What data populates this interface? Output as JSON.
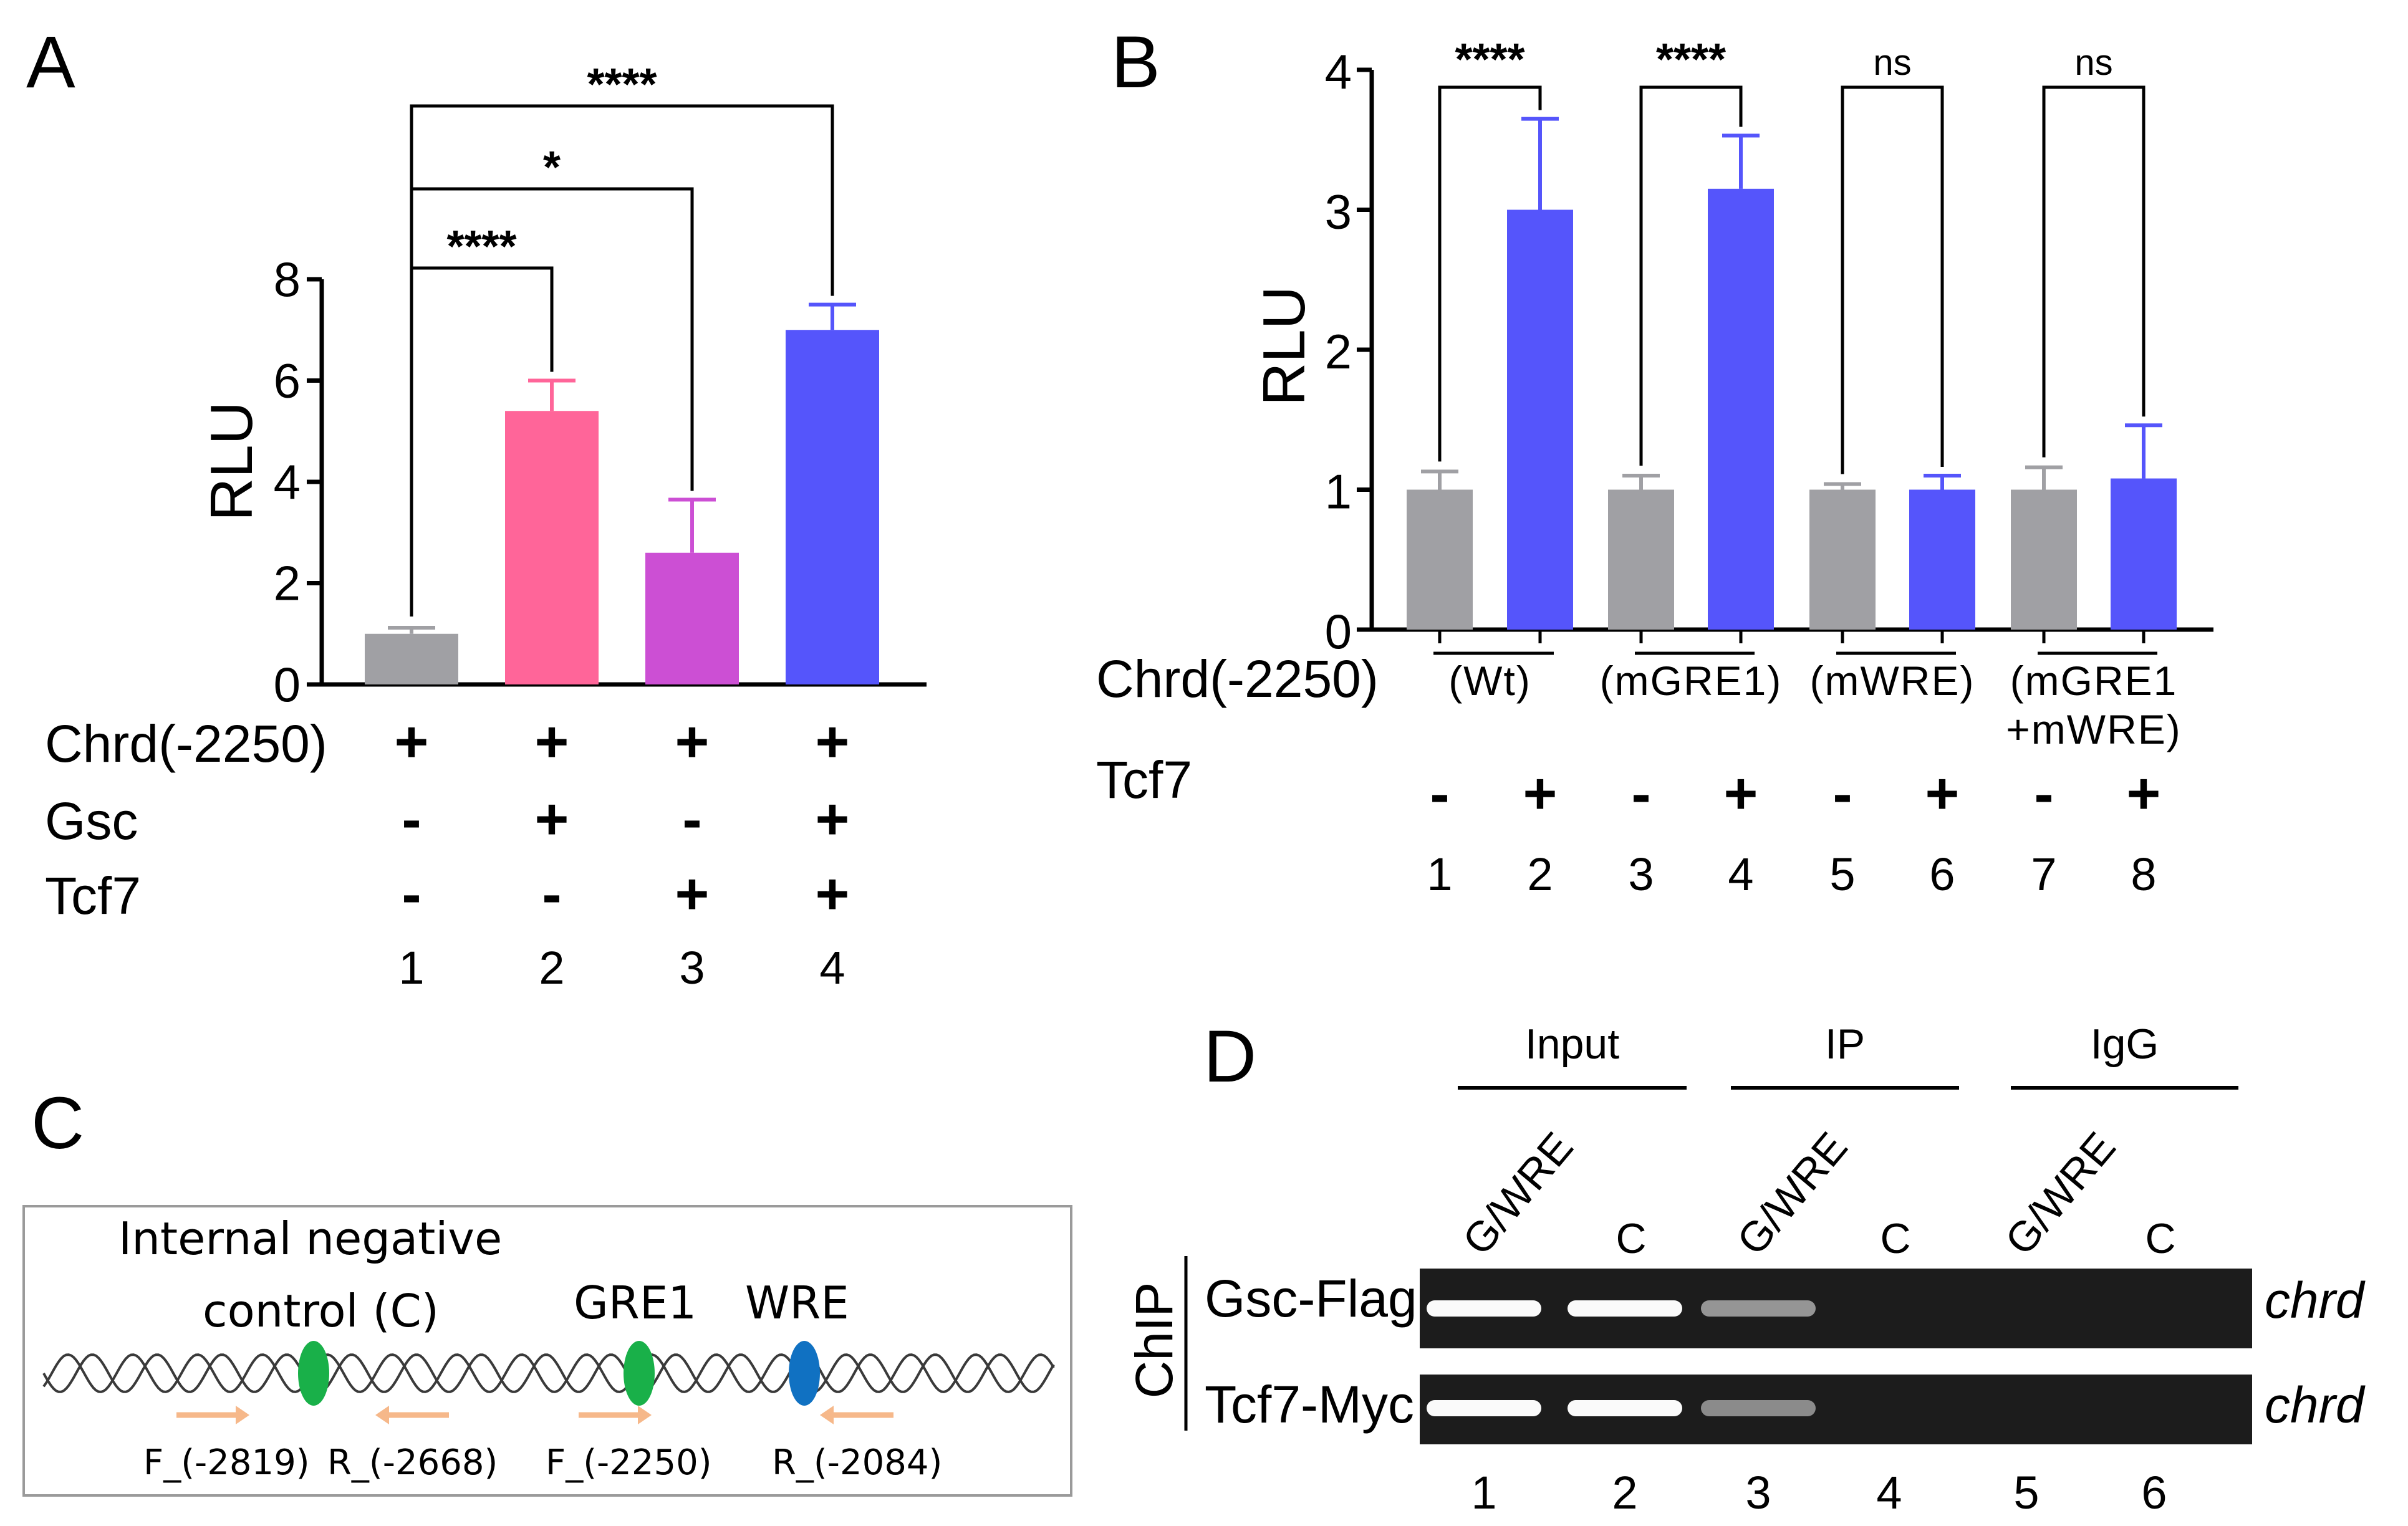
{
  "colors": {
    "gray": "#a0a0a4",
    "pink": "#ff6599",
    "magenta": "#cc4fd4",
    "blue": "#5555fb",
    "green": "#19b049",
    "dark_blue": "#1071c2",
    "arrow": "#f6b88a",
    "gel_bg": "#1c1c1c",
    "band": "#fafafa"
  },
  "chart_data": [
    {
      "panel": "A",
      "type": "bar",
      "ylabel": "RLU",
      "ylim": [
        0,
        8
      ],
      "yticks": [
        "0",
        "2",
        "4",
        "6",
        "8"
      ],
      "categories": [
        "1",
        "2",
        "3",
        "4"
      ],
      "values": [
        1.0,
        5.4,
        2.6,
        7.0
      ],
      "errors": [
        0.12,
        0.6,
        1.05,
        0.5
      ],
      "bar_colors": [
        "#a0a0a4",
        "#ff6599",
        "#cc4fd4",
        "#5555fb"
      ],
      "rows": [
        {
          "label": "Chrd(-2250)",
          "signs": [
            "+",
            "+",
            "+",
            "+"
          ]
        },
        {
          "label": "Gsc",
          "signs": [
            "-",
            "+",
            "-",
            "+"
          ]
        },
        {
          "label": "Tcf7",
          "signs": [
            "-",
            "-",
            "+",
            "+"
          ]
        }
      ],
      "comparisons": [
        {
          "from": 0,
          "to": 1,
          "label": "****"
        },
        {
          "from": 0,
          "to": 2,
          "label": "*"
        },
        {
          "from": 0,
          "to": 3,
          "label": "****"
        }
      ]
    },
    {
      "panel": "B",
      "type": "bar",
      "ylabel": "RLU",
      "ylim": [
        0,
        4
      ],
      "yticks": [
        "0",
        "1",
        "2",
        "3",
        "4"
      ],
      "categories": [
        "1",
        "2",
        "3",
        "4",
        "5",
        "6",
        "7",
        "8"
      ],
      "values": [
        1.0,
        3.0,
        1.0,
        3.15,
        1.0,
        1.0,
        1.0,
        1.08
      ],
      "errors": [
        0.13,
        0.65,
        0.1,
        0.38,
        0.04,
        0.1,
        0.16,
        0.38
      ],
      "bar_colors": [
        "#a0a0a4",
        "#5555fb",
        "#a0a0a4",
        "#5555fb",
        "#a0a0a4",
        "#5555fb",
        "#a0a0a4",
        "#5555fb"
      ],
      "construct_row_label": "Chrd(-2250)",
      "constructs": [
        "(Wt)",
        "(mGRE1)",
        "(mWRE)",
        "(mGRE1\n+mWRE)"
      ],
      "tcf7_label": "Tcf7",
      "tcf7_signs": [
        "-",
        "+",
        "-",
        "+",
        "-",
        "+",
        "-",
        "+"
      ],
      "comparisons": [
        {
          "from": 0,
          "to": 1,
          "label": "****"
        },
        {
          "from": 2,
          "to": 3,
          "label": "****"
        },
        {
          "from": 4,
          "to": 5,
          "label": "ns"
        },
        {
          "from": 6,
          "to": 7,
          "label": "ns"
        }
      ]
    }
  ],
  "panel_letters": {
    "a": "A",
    "b": "B",
    "c": "C",
    "d": "D"
  },
  "panel_c": {
    "line1": "Internal negative",
    "line2": "control (C)",
    "gre1": "GRE1",
    "wre": "WRE",
    "primers": [
      "F_(-2819)",
      "R_(-2668)",
      "F_(-2250)",
      "R_(-2084)"
    ]
  },
  "panel_d": {
    "groups": [
      "Input",
      "IP",
      "IgG"
    ],
    "columns": [
      "G/WRE",
      "C",
      "G/WRE",
      "C",
      "G/WRE",
      "C"
    ],
    "side_label": "ChIP",
    "row_labels": [
      "Gsc-Flag",
      "Tcf7-Myc"
    ],
    "right_label": "chrd",
    "lanes": [
      "1",
      "2",
      "3",
      "4",
      "5",
      "6"
    ],
    "band_intensity": [
      [
        1.0,
        1.0,
        0.55,
        0.0,
        0.0,
        0.0
      ],
      [
        1.0,
        1.0,
        0.5,
        0.0,
        0.0,
        0.0
      ]
    ]
  }
}
